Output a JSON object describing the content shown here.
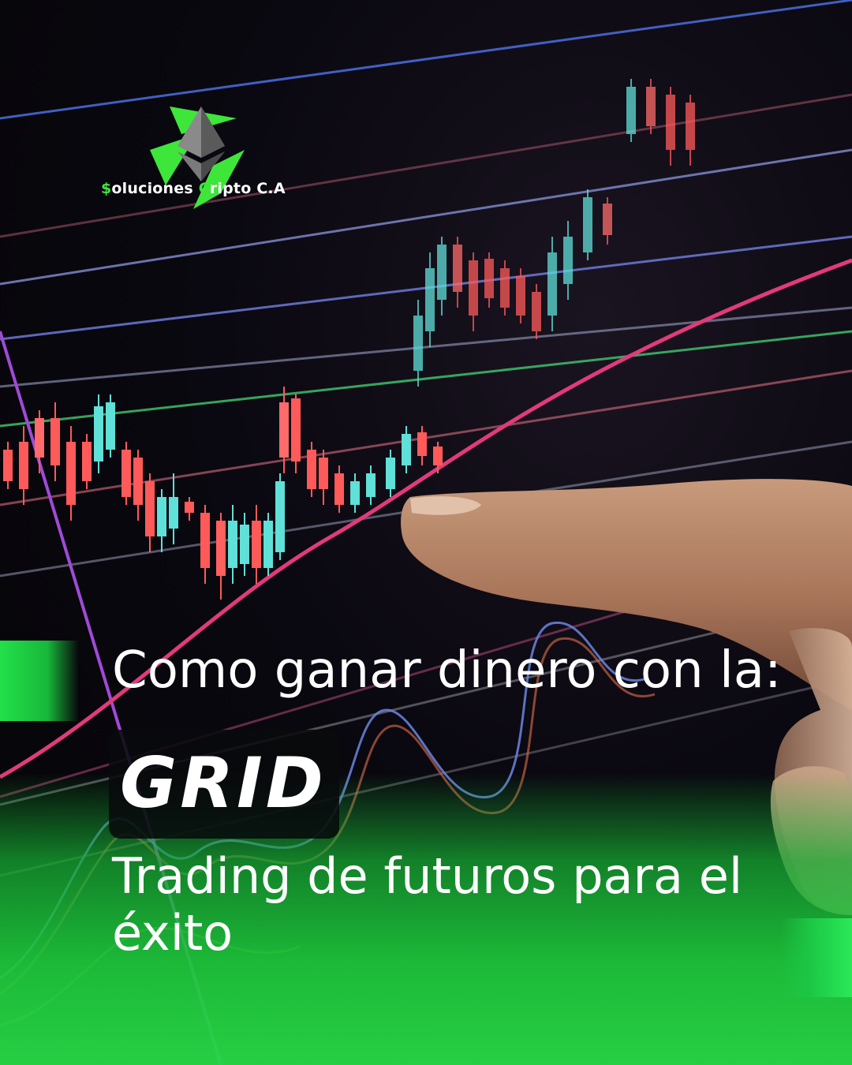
{
  "logo": {
    "icon": "diamond-crypto-icon",
    "name_first_letter": "$",
    "name_part1": "oluciones ",
    "name_second_letter": "C",
    "name_part2": "ripto C.A"
  },
  "headline": "Como ganar dinero con la:",
  "keyword": "GRID",
  "subline": "Trading de futuros para el éxito",
  "colors": {
    "brand_green": "#3ee63a",
    "bottom_green": "#28d446",
    "candle_up": "#5fe0d8",
    "candle_down": "#ff5a5a"
  }
}
